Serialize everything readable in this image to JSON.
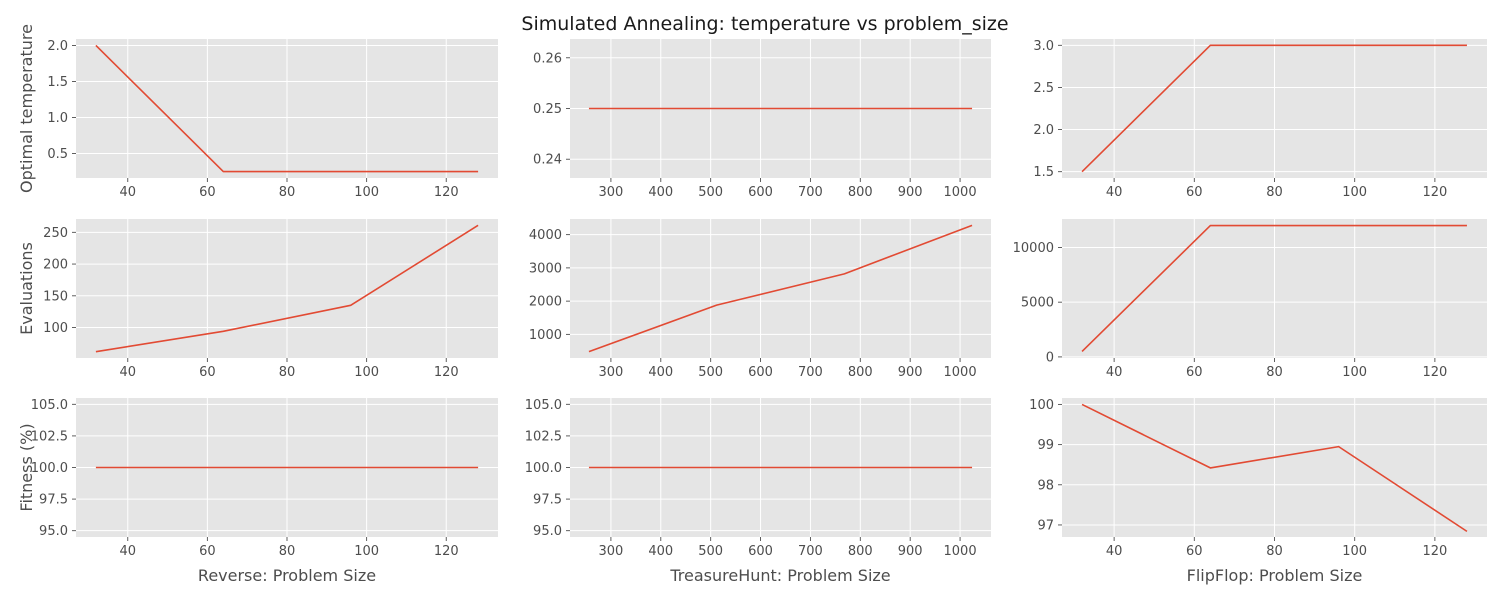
{
  "figure": {
    "title": "Simulated Annealing: temperature vs problem_size",
    "line_color": "#E24A33",
    "panel_background": "#E5E5E5",
    "grid_color": "#FFFFFF"
  },
  "chart_data": [
    {
      "type": "line",
      "row": 0,
      "col": 0,
      "title": "",
      "xlabel": "",
      "ylabel": "Optimal temperature",
      "x": [
        32,
        64,
        96,
        128
      ],
      "y": [
        2.0,
        0.25,
        0.25,
        0.25
      ],
      "xlim": [
        27,
        133
      ],
      "ylim": [
        0.16,
        2.09
      ],
      "xticks": [
        40,
        60,
        80,
        100,
        120
      ],
      "yticks": [
        0.5,
        1.0,
        1.5,
        2.0
      ],
      "yticklabels": [
        "0.5",
        "1.0",
        "1.5",
        "2.0"
      ],
      "grid": true
    },
    {
      "type": "line",
      "row": 0,
      "col": 1,
      "title": "",
      "xlabel": "",
      "ylabel": "",
      "x": [
        256,
        512,
        768,
        1024
      ],
      "y": [
        0.25,
        0.25,
        0.25,
        0.25
      ],
      "xlim": [
        218,
        1062
      ],
      "ylim": [
        0.2363,
        0.2637
      ],
      "xticks": [
        300,
        400,
        500,
        600,
        700,
        800,
        900,
        1000
      ],
      "yticks": [
        0.24,
        0.25,
        0.26
      ],
      "yticklabels": [
        "0.24",
        "0.25",
        "0.26"
      ],
      "grid": true
    },
    {
      "type": "line",
      "row": 0,
      "col": 2,
      "title": "",
      "xlabel": "",
      "ylabel": "",
      "x": [
        32,
        64,
        96,
        128
      ],
      "y": [
        1.5,
        3.0,
        3.0,
        3.0
      ],
      "xlim": [
        27,
        133
      ],
      "ylim": [
        1.425,
        3.075
      ],
      "xticks": [
        40,
        60,
        80,
        100,
        120
      ],
      "yticks": [
        1.5,
        2.0,
        2.5,
        3.0
      ],
      "yticklabels": [
        "1.5",
        "2.0",
        "2.5",
        "3.0"
      ],
      "grid": true
    },
    {
      "type": "line",
      "row": 1,
      "col": 0,
      "title": "",
      "xlabel": "",
      "ylabel": "Evaluations",
      "x": [
        32,
        64,
        96,
        128
      ],
      "y": [
        62,
        94,
        135,
        261
      ],
      "xlim": [
        27,
        133
      ],
      "ylim": [
        52,
        271
      ],
      "xticks": [
        40,
        60,
        80,
        100,
        120
      ],
      "yticks": [
        100,
        150,
        200,
        250
      ],
      "yticklabels": [
        "100",
        "150",
        "200",
        "250"
      ],
      "grid": true
    },
    {
      "type": "line",
      "row": 1,
      "col": 1,
      "title": "",
      "xlabel": "",
      "ylabel": "",
      "x": [
        256,
        512,
        768,
        1024
      ],
      "y": [
        480,
        1880,
        2820,
        4280
      ],
      "xlim": [
        218,
        1062
      ],
      "ylim": [
        290,
        4470
      ],
      "xticks": [
        300,
        400,
        500,
        600,
        700,
        800,
        900,
        1000
      ],
      "yticks": [
        1000,
        2000,
        3000,
        4000
      ],
      "yticklabels": [
        "1000",
        "2000",
        "3000",
        "4000"
      ],
      "grid": true
    },
    {
      "type": "line",
      "row": 1,
      "col": 2,
      "title": "",
      "xlabel": "",
      "ylabel": "",
      "x": [
        32,
        64,
        96,
        128
      ],
      "y": [
        500,
        12000,
        12000,
        12000
      ],
      "xlim": [
        27,
        133
      ],
      "ylim": [
        -100,
        12600
      ],
      "xticks": [
        40,
        60,
        80,
        100,
        120
      ],
      "yticks": [
        0,
        5000,
        10000
      ],
      "yticklabels": [
        "0",
        "5000",
        "10000"
      ],
      "grid": true
    },
    {
      "type": "line",
      "row": 2,
      "col": 0,
      "title": "",
      "xlabel": "Reverse: Problem Size",
      "ylabel": "Fitness (%)",
      "x": [
        32,
        64,
        96,
        128
      ],
      "y": [
        100,
        100,
        100,
        100
      ],
      "xlim": [
        27,
        133
      ],
      "ylim": [
        94.5,
        105.5
      ],
      "xticks": [
        40,
        60,
        80,
        100,
        120
      ],
      "yticks": [
        95.0,
        97.5,
        100.0,
        102.5,
        105.0
      ],
      "yticklabels": [
        "95.0",
        "97.5",
        "100.0",
        "102.5",
        "105.0"
      ],
      "grid": true
    },
    {
      "type": "line",
      "row": 2,
      "col": 1,
      "title": "",
      "xlabel": "TreasureHunt: Problem Size",
      "ylabel": "",
      "x": [
        256,
        512,
        768,
        1024
      ],
      "y": [
        100,
        100,
        100,
        100
      ],
      "xlim": [
        218,
        1062
      ],
      "ylim": [
        94.5,
        105.5
      ],
      "xticks": [
        300,
        400,
        500,
        600,
        700,
        800,
        900,
        1000
      ],
      "yticks": [
        95.0,
        97.5,
        100.0,
        102.5,
        105.0
      ],
      "yticklabels": [
        "95.0",
        "97.5",
        "100.0",
        "102.5",
        "105.0"
      ],
      "grid": true
    },
    {
      "type": "line",
      "row": 2,
      "col": 2,
      "title": "",
      "xlabel": "FlipFlop: Problem Size",
      "ylabel": "",
      "x": [
        32,
        64,
        96,
        128
      ],
      "y": [
        100.0,
        98.42,
        98.95,
        96.84
      ],
      "xlim": [
        27,
        133
      ],
      "ylim": [
        96.7,
        100.16
      ],
      "xticks": [
        40,
        60,
        80,
        100,
        120
      ],
      "yticks": [
        97,
        98,
        99,
        100
      ],
      "yticklabels": [
        "97",
        "98",
        "99",
        "100"
      ],
      "grid": true
    }
  ]
}
